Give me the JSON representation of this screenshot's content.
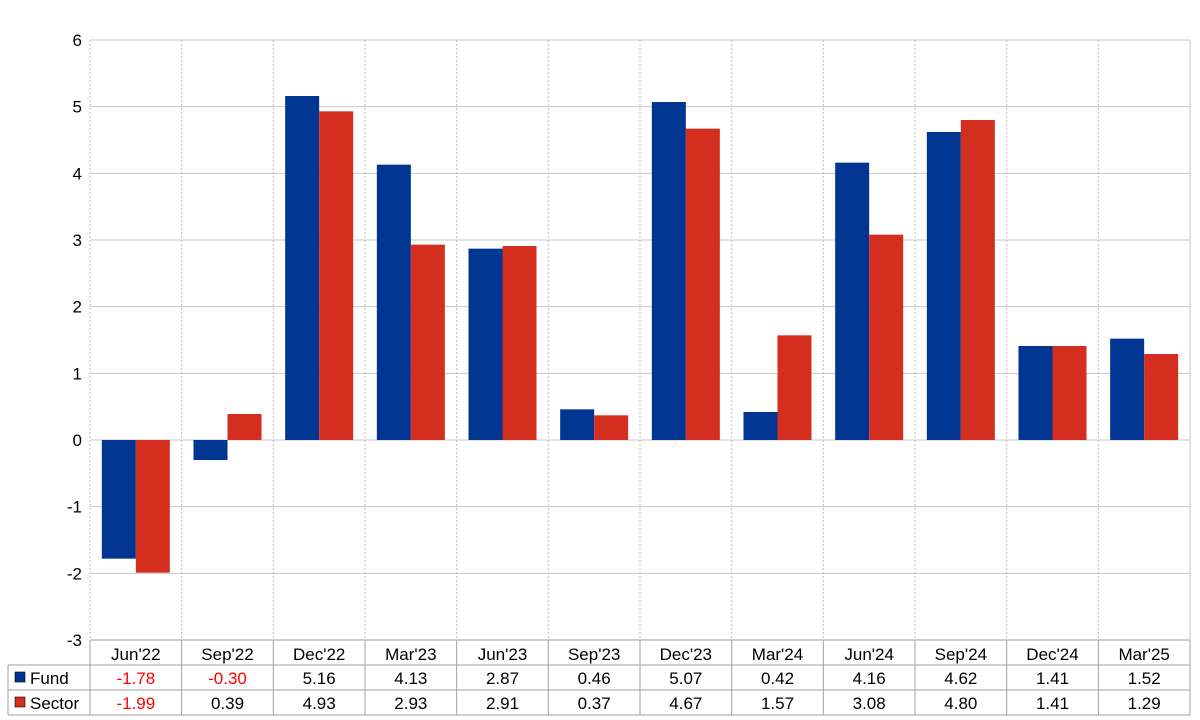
{
  "chart_data": {
    "type": "bar",
    "categories": [
      "Jun'22",
      "Sep'22",
      "Dec'22",
      "Mar'23",
      "Jun'23",
      "Sep'23",
      "Dec'23",
      "Mar'24",
      "Jun'24",
      "Sep'24",
      "Dec'24",
      "Mar'25"
    ],
    "series": [
      {
        "name": "Fund",
        "color": "#003591",
        "values": [
          -1.78,
          -0.3,
          5.16,
          4.13,
          2.87,
          0.46,
          5.07,
          0.42,
          4.16,
          4.62,
          1.41,
          1.52
        ]
      },
      {
        "name": "Sector",
        "color": "#d42e1f",
        "values": [
          -1.99,
          0.39,
          4.93,
          2.93,
          2.91,
          0.37,
          4.67,
          1.57,
          3.08,
          4.8,
          1.41,
          1.29
        ]
      }
    ],
    "table_values": [
      [
        "-1.78",
        "-0.30",
        "5.16",
        "4.13",
        "2.87",
        "0.46",
        "5.07",
        "0.42",
        "4.16",
        "4.62",
        "1.41",
        "1.52"
      ],
      [
        "-1.99",
        "0.39",
        "4.93",
        "2.93",
        "2.91",
        "0.37",
        "4.67",
        "1.57",
        "3.08",
        "4.80",
        "1.41",
        "1.29"
      ]
    ],
    "ylim": [
      -3,
      6
    ],
    "yticks": [
      "6",
      "5",
      "4",
      "3",
      "2",
      "1",
      "0",
      "-1",
      "-2",
      "-3"
    ],
    "negative_color": "#ff0000",
    "grid": true,
    "legend": "table-bottom"
  }
}
